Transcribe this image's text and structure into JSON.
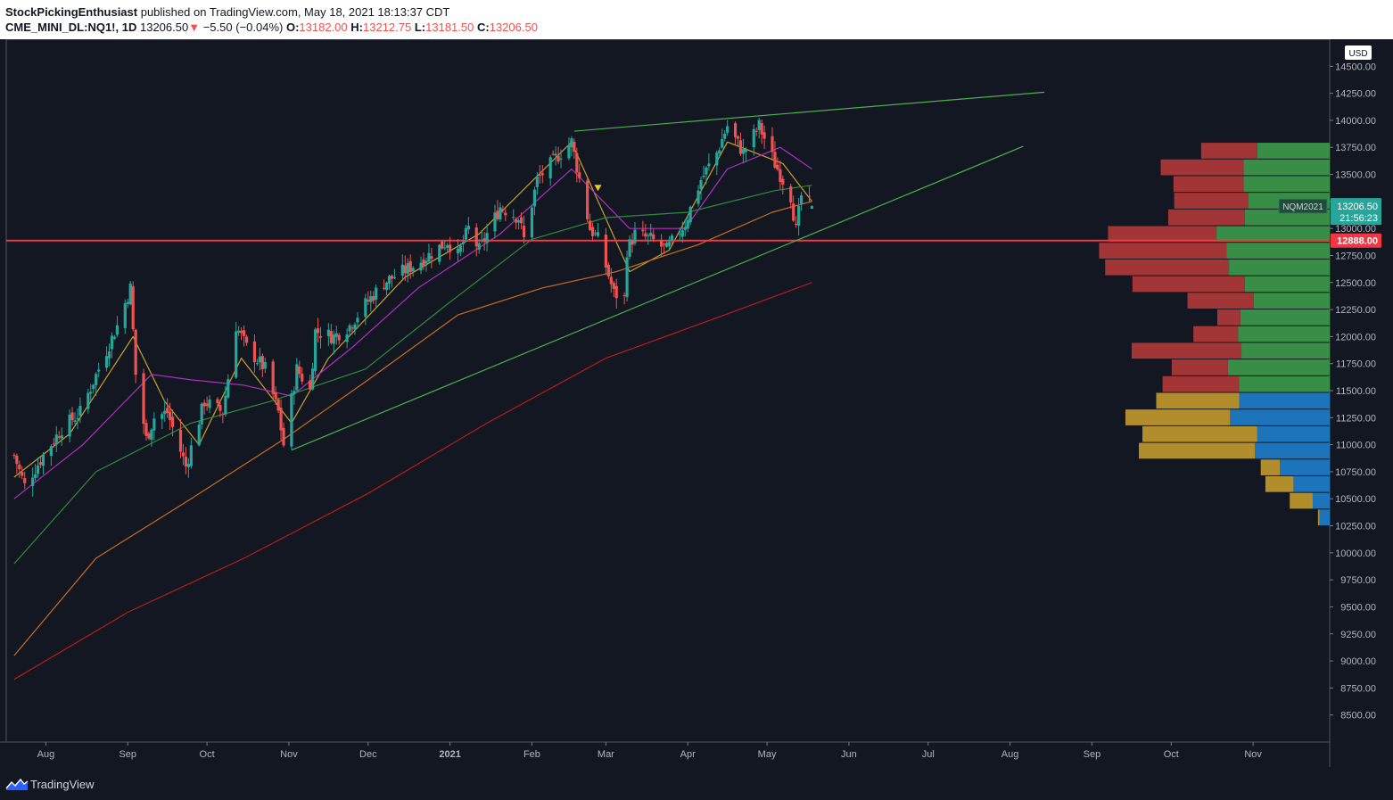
{
  "header": {
    "author": "StockPickingEnthusiast",
    "published": "published on TradingView.com, May 18, 2021 18:13:37 CDT",
    "symbol": "CME_MINI_DL:NQ1!, 1D",
    "last": "13206.50",
    "change_arrow": "▼",
    "change": "−5.50 (−0.04%)",
    "o_label": "O:",
    "o": "13182.00",
    "h_label": "H:",
    "h": "13212.75",
    "l_label": "L:",
    "l": "13181.50",
    "c_label": "C:",
    "c": "13206.50"
  },
  "footer": {
    "brand": "TradingView",
    "logo_icon": "tradingview-logo-icon"
  },
  "colors": {
    "background": "#131722",
    "up": "#26a69a",
    "down": "#ef5350",
    "support_line": "#f23645",
    "trendline": "#4caf50",
    "vp_red": "#b33a3a",
    "vp_green": "#3d9a4b",
    "vp_gold": "#c49a2c",
    "vp_blue": "#1e7ecb",
    "ema_yellow": "#c9a227",
    "ema_purple": "#b02fbf",
    "ema_green": "#2e8b3e",
    "ema_orange": "#c96d1f",
    "ema_red": "#b71c1c"
  },
  "chart_data": {
    "type": "candlestick",
    "currency": "USD",
    "ylim": [
      8250,
      14750
    ],
    "y_ticks": [
      8500,
      8750,
      9000,
      9250,
      9500,
      9750,
      10000,
      10250,
      10500,
      10750,
      11000,
      11250,
      11500,
      11750,
      12000,
      12250,
      12500,
      12750,
      13000,
      13250,
      13500,
      13750,
      14000,
      14250,
      14500
    ],
    "x_ticks": [
      {
        "label": "Aug",
        "date": "2020-08-01"
      },
      {
        "label": "Sep",
        "date": "2020-09-01"
      },
      {
        "label": "Oct",
        "date": "2020-10-01"
      },
      {
        "label": "Nov",
        "date": "2020-11-01"
      },
      {
        "label": "Dec",
        "date": "2020-12-01"
      },
      {
        "label": "2021",
        "date": "2021-01-01"
      },
      {
        "label": "Feb",
        "date": "2021-02-01"
      },
      {
        "label": "Mar",
        "date": "2021-03-01"
      },
      {
        "label": "Apr",
        "date": "2021-04-01"
      },
      {
        "label": "May",
        "date": "2021-05-01"
      },
      {
        "label": "Jun",
        "date": "2021-06-01"
      },
      {
        "label": "Jul",
        "date": "2021-07-01"
      },
      {
        "label": "Aug",
        "date": "2021-08-01"
      },
      {
        "label": "Sep",
        "date": "2021-09-01"
      },
      {
        "label": "Oct",
        "date": "2021-10-01"
      },
      {
        "label": "Nov",
        "date": "2021-11-01"
      }
    ],
    "closes": {
      "start_date": "2020-07-20",
      "end_date": "2021-05-18",
      "anchors": [
        [
          "2020-07-20",
          10900
        ],
        [
          "2020-07-24",
          10620
        ],
        [
          "2020-07-31",
          10900
        ],
        [
          "2020-08-07",
          11150
        ],
        [
          "2020-08-14",
          11300
        ],
        [
          "2020-08-21",
          11700
        ],
        [
          "2020-08-28",
          12100
        ],
        [
          "2020-09-02",
          12450
        ],
        [
          "2020-09-04",
          11650
        ],
        [
          "2020-09-08",
          11050
        ],
        [
          "2020-09-11",
          11250
        ],
        [
          "2020-09-16",
          11300
        ],
        [
          "2020-09-23",
          10800
        ],
        [
          "2020-09-30",
          11400
        ],
        [
          "2020-10-07",
          11300
        ],
        [
          "2020-10-12",
          12100
        ],
        [
          "2020-10-16",
          11900
        ],
        [
          "2020-10-23",
          11700
        ],
        [
          "2020-10-28",
          11300
        ],
        [
          "2020-10-30",
          11000
        ],
        [
          "2020-11-04",
          11700
        ],
        [
          "2020-11-09",
          11500
        ],
        [
          "2020-11-11",
          12050
        ],
        [
          "2020-11-18",
          12000
        ],
        [
          "2020-11-24",
          12100
        ],
        [
          "2020-11-30",
          12300
        ],
        [
          "2020-12-07",
          12500
        ],
        [
          "2020-12-14",
          12600
        ],
        [
          "2020-12-21",
          12700
        ],
        [
          "2020-12-31",
          12880
        ],
        [
          "2021-01-04",
          12750
        ],
        [
          "2021-01-08",
          13000
        ],
        [
          "2021-01-12",
          12800
        ],
        [
          "2021-01-20",
          13200
        ],
        [
          "2021-01-27",
          13100
        ],
        [
          "2021-01-29",
          12900
        ],
        [
          "2021-02-03",
          13450
        ],
        [
          "2021-02-10",
          13650
        ],
        [
          "2021-02-16",
          13800
        ],
        [
          "2021-02-23",
          13000
        ],
        [
          "2021-02-26",
          12900
        ],
        [
          "2021-03-04",
          12400
        ],
        [
          "2021-03-08",
          12350
        ],
        [
          "2021-03-09",
          12800
        ],
        [
          "2021-03-12",
          12950
        ],
        [
          "2021-03-18",
          12900
        ],
        [
          "2021-03-24",
          12800
        ],
        [
          "2021-03-31",
          13050
        ],
        [
          "2021-04-06",
          13450
        ],
        [
          "2021-04-12",
          13700
        ],
        [
          "2021-04-16",
          13950
        ],
        [
          "2021-04-22",
          13700
        ],
        [
          "2021-04-28",
          13950
        ],
        [
          "2021-05-04",
          13600
        ],
        [
          "2021-05-10",
          13300
        ],
        [
          "2021-05-12",
          12980
        ],
        [
          "2021-05-14",
          13300
        ],
        [
          "2021-05-18",
          13206.5
        ]
      ]
    },
    "last_bar": {
      "open": 13182.0,
      "high": 13212.75,
      "low": 13181.5,
      "close": 13206.5
    },
    "moving_averages": [
      {
        "color": "ema_yellow",
        "anchors": [
          [
            "2020-07-20",
            10700
          ],
          [
            "2020-08-10",
            11100
          ],
          [
            "2020-09-03",
            12000
          ],
          [
            "2020-09-15",
            11400
          ],
          [
            "2020-09-28",
            11000
          ],
          [
            "2020-10-14",
            11800
          ],
          [
            "2020-11-02",
            11200
          ],
          [
            "2020-11-16",
            11800
          ],
          [
            "2020-12-15",
            12550
          ],
          [
            "2021-01-12",
            12950
          ],
          [
            "2021-02-16",
            13800
          ],
          [
            "2021-03-10",
            12600
          ],
          [
            "2021-03-25",
            12800
          ],
          [
            "2021-04-16",
            13800
          ],
          [
            "2021-05-07",
            13600
          ],
          [
            "2021-05-18",
            13250
          ]
        ]
      },
      {
        "color": "ema_purple",
        "anchors": [
          [
            "2020-07-20",
            10500
          ],
          [
            "2020-08-15",
            11000
          ],
          [
            "2020-09-10",
            11650
          ],
          [
            "2020-09-25",
            11600
          ],
          [
            "2020-10-15",
            11550
          ],
          [
            "2020-11-02",
            11450
          ],
          [
            "2020-11-25",
            11900
          ],
          [
            "2020-12-20",
            12450
          ],
          [
            "2021-01-20",
            12950
          ],
          [
            "2021-02-16",
            13550
          ],
          [
            "2021-03-10",
            13000
          ],
          [
            "2021-03-31",
            13000
          ],
          [
            "2021-04-16",
            13550
          ],
          [
            "2021-05-06",
            13750
          ],
          [
            "2021-05-18",
            13550
          ]
        ]
      },
      {
        "color": "ema_green",
        "anchors": [
          [
            "2020-07-20",
            9900
          ],
          [
            "2020-08-20",
            10750
          ],
          [
            "2020-09-25",
            11200
          ],
          [
            "2020-10-25",
            11400
          ],
          [
            "2020-11-30",
            11700
          ],
          [
            "2020-12-31",
            12300
          ],
          [
            "2021-02-01",
            12900
          ],
          [
            "2021-03-01",
            13100
          ],
          [
            "2021-04-01",
            13150
          ],
          [
            "2021-05-04",
            13350
          ],
          [
            "2021-05-18",
            13400
          ]
        ]
      },
      {
        "color": "ema_orange",
        "anchors": [
          [
            "2020-07-20",
            9050
          ],
          [
            "2020-08-20",
            9950
          ],
          [
            "2020-09-25",
            10500
          ],
          [
            "2020-10-30",
            11050
          ],
          [
            "2020-12-01",
            11600
          ],
          [
            "2021-01-04",
            12200
          ],
          [
            "2021-02-05",
            12450
          ],
          [
            "2021-03-05",
            12600
          ],
          [
            "2021-04-05",
            12850
          ],
          [
            "2021-05-03",
            13150
          ],
          [
            "2021-05-18",
            13250
          ]
        ]
      },
      {
        "color": "ema_red",
        "anchors": [
          [
            "2020-07-20",
            8830
          ],
          [
            "2020-09-01",
            9450
          ],
          [
            "2020-10-15",
            9950
          ],
          [
            "2020-12-01",
            10550
          ],
          [
            "2021-01-15",
            11200
          ],
          [
            "2021-03-01",
            11800
          ],
          [
            "2021-04-15",
            12200
          ],
          [
            "2021-05-18",
            12500
          ]
        ]
      }
    ],
    "trendlines": [
      {
        "from": [
          "2020-11-02",
          10950
        ],
        "to": [
          "2021-08-06",
          13760
        ]
      },
      {
        "from": [
          "2021-02-17",
          13900
        ],
        "to": [
          "2021-08-14",
          14260
        ]
      }
    ],
    "support_level": 12888.0,
    "marker": {
      "date": "2021-02-26",
      "price": 13370,
      "shape": "down-triangle"
    },
    "price_labels": [
      {
        "text": "13206.50",
        "sub": "21:56:23",
        "price": 13206.5,
        "style": "green"
      },
      {
        "text": "12888.00",
        "price": 12888.0,
        "style": "red"
      }
    ],
    "contract_label": "NQM2021",
    "volume_profile": {
      "bottom": 10250,
      "bin_size": 154.2,
      "rows": [
        {
          "up": 0.09,
          "down": 0.012,
          "up_color": "vp_blue",
          "down_color": "vp_gold"
        },
        {
          "up": 0.15,
          "down": 0.18,
          "up_color": "vp_blue",
          "down_color": "vp_gold"
        },
        {
          "up": 0.32,
          "down": 0.22,
          "up_color": "vp_blue",
          "down_color": "vp_gold"
        },
        {
          "up": 0.44,
          "down": 0.15,
          "up_color": "vp_blue",
          "down_color": "vp_gold"
        },
        {
          "up": 0.66,
          "down": 0.91,
          "up_color": "vp_blue",
          "down_color": "vp_gold"
        },
        {
          "up": 0.64,
          "down": 0.9,
          "up_color": "vp_blue",
          "down_color": "vp_gold"
        },
        {
          "up": 0.88,
          "down": 0.82,
          "up_color": "vp_blue",
          "down_color": "vp_gold"
        },
        {
          "up": 0.8,
          "down": 0.65,
          "up_color": "vp_blue",
          "down_color": "vp_gold"
        },
        {
          "up": 0.8,
          "down": 0.6,
          "up_color": "vp_green",
          "down_color": "vp_red"
        },
        {
          "up": 0.9,
          "down": 0.44,
          "up_color": "vp_green",
          "down_color": "vp_red"
        },
        {
          "up": 0.78,
          "down": 0.86,
          "up_color": "vp_green",
          "down_color": "vp_red"
        },
        {
          "up": 0.81,
          "down": 0.35,
          "up_color": "vp_green",
          "down_color": "vp_red"
        },
        {
          "up": 0.79,
          "down": 0.18,
          "up_color": "vp_green",
          "down_color": "vp_red"
        },
        {
          "up": 0.67,
          "down": 0.52,
          "up_color": "vp_green",
          "down_color": "vp_red"
        },
        {
          "up": 0.75,
          "down": 0.88,
          "up_color": "vp_green",
          "down_color": "vp_red"
        },
        {
          "up": 0.89,
          "down": 0.97,
          "up_color": "vp_green",
          "down_color": "vp_red"
        },
        {
          "up": 0.91,
          "down": 1.0,
          "up_color": "vp_green",
          "down_color": "vp_red"
        },
        {
          "up": 1.0,
          "down": 0.85,
          "up_color": "vp_green",
          "down_color": "vp_red"
        },
        {
          "up": 0.75,
          "down": 0.6,
          "up_color": "vp_green",
          "down_color": "vp_red"
        },
        {
          "up": 0.72,
          "down": 0.58,
          "up_color": "vp_green",
          "down_color": "vp_red"
        },
        {
          "up": 0.76,
          "down": 0.55,
          "up_color": "vp_green",
          "down_color": "vp_red"
        },
        {
          "up": 0.76,
          "down": 0.65,
          "up_color": "vp_green",
          "down_color": "vp_red"
        },
        {
          "up": 0.64,
          "down": 0.44,
          "up_color": "vp_green",
          "down_color": "vp_red"
        }
      ]
    }
  }
}
